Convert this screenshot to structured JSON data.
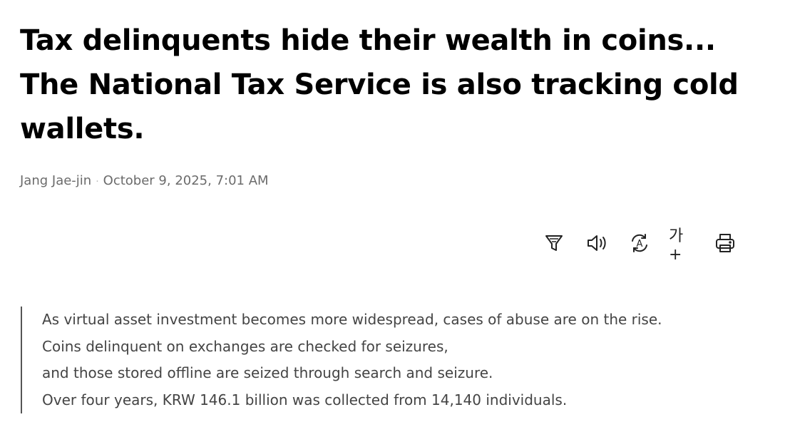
{
  "article": {
    "title": "Tax delinquents hide their wealth in coins... The National Tax Service is also tracking cold wallets.",
    "author": "Jang Jae-jin",
    "separator": "·",
    "date": "October 9, 2025, 7:01 AM"
  },
  "toolbar": {
    "items": [
      {
        "icon": "filter-icon"
      },
      {
        "icon": "speaker-icon"
      },
      {
        "icon": "translate-icon",
        "glyph": "A"
      },
      {
        "icon": "font-size-icon",
        "glyph": "가+"
      },
      {
        "icon": "print-icon"
      }
    ]
  },
  "summary": {
    "lines": [
      "As virtual asset investment becomes more widespread, cases of abuse are on the rise.",
      "Coins delinquent on exchanges are checked for seizures,",
      "and those stored offline are seized through search and seizure.",
      "Over four years, KRW 146.1 billion was collected from 14,140 individuals."
    ]
  }
}
